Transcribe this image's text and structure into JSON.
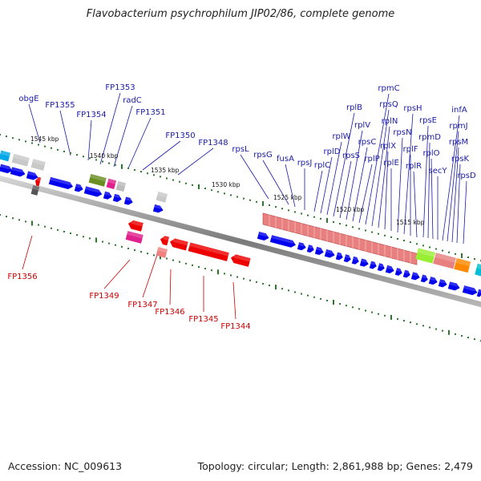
{
  "title": "Flavobacterium psychrophilum JIP02/86, complete genome",
  "footer": {
    "accession": "Accession: NC_009613",
    "stats": "Topology: circular; Length: 2,861,988 bp; Genes: 2,479"
  },
  "colors": {
    "forward_label": "#1a1aa8",
    "reverse_label": "#cc0000",
    "forward_gene": "#0000ee",
    "reverse_gene": "#ee0000",
    "ribosomal_band": "#e88080",
    "tick": "#2a7a2a",
    "backbone": "#8a8a8a"
  },
  "kbp_labels": [
    "1545 kbp",
    "1540 kbp",
    "1535 kbp",
    "1530 kbp",
    "1525 kbp",
    "1520 kbp",
    "1515 kbp"
  ],
  "forward_labels": [
    "obgE",
    "FP1355",
    "FP1354",
    "FP1353",
    "radC",
    "FP1351",
    "FP1350",
    "FP1348",
    "rpsL",
    "rpsG",
    "fusA",
    "rpsJ",
    "rplC",
    "rplD",
    "rplW",
    "rplB",
    "rpsS",
    "rplV",
    "rpsC",
    "rplP",
    "rpmC",
    "rpsQ",
    "rplN",
    "rplX",
    "rplE",
    "rpsN",
    "rpsH",
    "rplF",
    "rplR",
    "rpsE",
    "rpmD",
    "rplO",
    "secY",
    "infA",
    "rpmJ",
    "rpsM",
    "rpsK",
    "rpsD"
  ],
  "reverse_labels": [
    "FP1356",
    "FP1349",
    "FP1347",
    "FP1346",
    "FP1345",
    "FP1344"
  ]
}
